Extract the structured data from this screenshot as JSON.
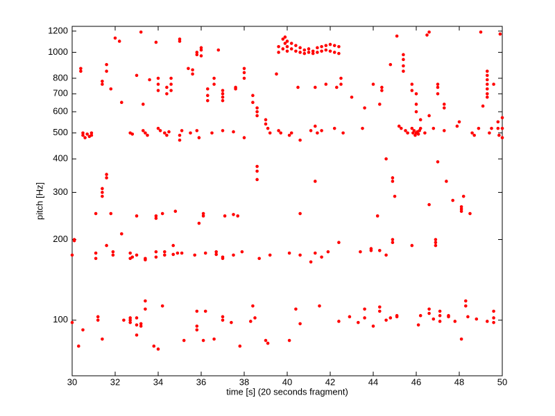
{
  "chart_data": {
    "type": "scatter",
    "xlabel": "time [s] (20 seconds fragment)",
    "ylabel": "pitch [Hz]",
    "color": "#ff0000",
    "yscale": "log",
    "xlim": [
      30,
      50
    ],
    "ylim": [
      62,
      1250
    ],
    "xticks": [
      30,
      32,
      34,
      36,
      38,
      40,
      42,
      44,
      46,
      48,
      50
    ],
    "yticks": [
      100,
      200,
      300,
      400,
      500,
      600,
      700,
      800,
      1000,
      1200
    ],
    "x": [
      30.5,
      30.5,
      30.6,
      30.7,
      30.8,
      30.9,
      30.9,
      32.7,
      32.8,
      33.3,
      33.4,
      33.5,
      34.0,
      34.1,
      34.3,
      34.4,
      34.5,
      35.0,
      35.0,
      35.1,
      35.5,
      35.8,
      35.9,
      36.5,
      37.0,
      37.5,
      38.0,
      39.1,
      39.2,
      39.6,
      39.7,
      40.1,
      40.2,
      40.6,
      41.1,
      41.3,
      41.4,
      41.6,
      42.2,
      42.6,
      43.5,
      45.2,
      45.3,
      45.5,
      45.6,
      45.8,
      45.85,
      45.9,
      45.95,
      46.0,
      46.05,
      46.1,
      46.15,
      46.2,
      46.4,
      46.8,
      47.3,
      47.9,
      48.6,
      48.7,
      48.9,
      49.4,
      49.5,
      49.8,
      49.8,
      49.85,
      50.0,
      50.0,
      50.0,
      39.6,
      39.6,
      39.8,
      39.8,
      39.9,
      39.9,
      40.0,
      40.0,
      40.0,
      40.2,
      40.2,
      40.4,
      40.4,
      40.6,
      40.6,
      40.8,
      40.8,
      41.0,
      41.0,
      41.2,
      41.2,
      41.4,
      41.4,
      41.6,
      41.6,
      41.8,
      41.8,
      42.0,
      42.0,
      42.2,
      42.2,
      42.4,
      42.4,
      30.4,
      30.4,
      31.4,
      31.4,
      31.6,
      31.6,
      31.8,
      32.0,
      32.2,
      32.3,
      33.0,
      33.2,
      33.3,
      33.6,
      33.9,
      34.0,
      34.0,
      34.0,
      34.4,
      34.4,
      34.6,
      34.6,
      34.6,
      35.0,
      35.0,
      35.4,
      35.6,
      35.6,
      35.8,
      35.8,
      36.0,
      36.0,
      36.0,
      36.3,
      36.3,
      36.3,
      36.6,
      36.6,
      36.8,
      37.0,
      37.0,
      37.0,
      37.0,
      37.6,
      37.6,
      38.0,
      38.0,
      38.0,
      38.4,
      38.4,
      38.6,
      38.6,
      38.6,
      39.0,
      39.0,
      39.5,
      40.5,
      41.3,
      41.8,
      42.3,
      42.5,
      42.5,
      43.0,
      43.6,
      44.0,
      44.3,
      44.4,
      44.4,
      44.8,
      45.1,
      45.4,
      45.4,
      45.4,
      45.4,
      45.8,
      45.8,
      46.0,
      46.0,
      46.0,
      46.2,
      46.5,
      46.6,
      46.6,
      47.0,
      47.0,
      47.0,
      47.3,
      47.3,
      48.0,
      49.0,
      49.1,
      49.3,
      49.3,
      49.3,
      49.3,
      49.3,
      49.3,
      49.3,
      49.6,
      49.9,
      31.1,
      31.4,
      31.4,
      31.4,
      31.6,
      31.6,
      31.8,
      33.0,
      33.9,
      33.9,
      34.2,
      34.8,
      35.9,
      36.1,
      36.1,
      37.1,
      37.5,
      37.7,
      38.6,
      38.6,
      38.6,
      40.6,
      41.3,
      44.2,
      44.6,
      44.9,
      44.9,
      45.0,
      46.6,
      47.0,
      47.4,
      47.7,
      48.2,
      48.1,
      48.1,
      48.1,
      48.5,
      30.0,
      30.1,
      30.1,
      31.1,
      31.1,
      31.6,
      31.9,
      31.9,
      32.3,
      32.7,
      32.7,
      32.8,
      33.0,
      33.4,
      33.4,
      33.9,
      33.9,
      34.3,
      34.3,
      34.7,
      34.7,
      34.9,
      35.1,
      35.7,
      36.2,
      36.7,
      36.7,
      37.0,
      37.0,
      37.5,
      37.9,
      38.7,
      39.2,
      40.1,
      40.6,
      41.1,
      41.3,
      41.6,
      41.9,
      42.4,
      43.4,
      43.9,
      43.9,
      44.3,
      44.6,
      44.9,
      44.9,
      45.8,
      46.9,
      46.9,
      46.9,
      30.0,
      30.3,
      30.5,
      31.2,
      31.2,
      31.4,
      32.4,
      32.7,
      32.7,
      32.7,
      33.0,
      33.0,
      33.0,
      33.2,
      33.2,
      33.4,
      33.4,
      33.8,
      34.0,
      34.2,
      35.2,
      35.8,
      35.8,
      35.8,
      36.2,
      36.1,
      36.6,
      37.4,
      37.0,
      37.0,
      37.8,
      38.5,
      38.3,
      38.4,
      39.0,
      39.1,
      40.1,
      40.4,
      40.6,
      41.5,
      42.4,
      42.9,
      43.3,
      43.6,
      43.6,
      44.0,
      44.3,
      44.3,
      44.6,
      44.8,
      45.1,
      45.1,
      46.2,
      46.1,
      46.6,
      46.6,
      46.8,
      47.1,
      47.1,
      47.1,
      47.5,
      47.5,
      47.8,
      48.1,
      48.3,
      48.3,
      48.4,
      48.8,
      49.3,
      49.6,
      49.6,
      49.6
    ],
    "values": [
      490,
      500,
      480,
      495,
      485,
      500,
      490,
      500,
      495,
      510,
      500,
      490,
      520,
      510,
      500,
      490,
      505,
      470,
      490,
      510,
      500,
      510,
      480,
      500,
      510,
      505,
      480,
      520,
      500,
      510,
      500,
      490,
      500,
      470,
      510,
      530,
      500,
      510,
      520,
      500,
      520,
      530,
      520,
      510,
      500,
      520,
      500,
      510,
      490,
      500,
      505,
      495,
      510,
      520,
      500,
      520,
      510,
      530,
      500,
      490,
      520,
      500,
      520,
      550,
      520,
      490,
      570,
      520,
      480,
      1050,
      1000,
      1120,
      1030,
      1140,
      1080,
      1100,
      1050,
      1010,
      1080,
      1030,
      1060,
      1010,
      1040,
      1000,
      1020,
      990,
      1030,
      1000,
      1010,
      990,
      1040,
      1000,
      1050,
      1010,
      1060,
      1020,
      1070,
      1010,
      1060,
      1000,
      1050,
      990,
      870,
      850,
      780,
      760,
      900,
      850,
      730,
      1130,
      1100,
      650,
      820,
      1190,
      640,
      790,
      1090,
      720,
      760,
      800,
      700,
      740,
      760,
      800,
      720,
      1120,
      1100,
      870,
      860,
      830,
      1000,
      980,
      1040,
      1020,
      970,
      730,
      690,
      660,
      800,
      760,
      1020,
      720,
      700,
      680,
      660,
      740,
      730,
      870,
      840,
      800,
      690,
      650,
      620,
      600,
      580,
      560,
      540,
      830,
      740,
      740,
      760,
      740,
      800,
      760,
      680,
      620,
      760,
      640,
      740,
      720,
      900,
      1150,
      980,
      940,
      890,
      850,
      760,
      720,
      700,
      640,
      600,
      560,
      1160,
      1190,
      580,
      740,
      760,
      700,
      640,
      620,
      550,
      1190,
      630,
      850,
      820,
      790,
      760,
      730,
      700,
      680,
      760,
      1170,
      250,
      310,
      300,
      290,
      350,
      340,
      250,
      245,
      245,
      240,
      250,
      255,
      230,
      245,
      250,
      245,
      248,
      245,
      375,
      360,
      335,
      250,
      330,
      245,
      400,
      340,
      330,
      290,
      270,
      390,
      330,
      280,
      290,
      265,
      260,
      255,
      250,
      175,
      200,
      198,
      178,
      170,
      190,
      175,
      180,
      210,
      178,
      170,
      172,
      175,
      168,
      170,
      180,
      172,
      175,
      180,
      190,
      176,
      178,
      178,
      175,
      178,
      180,
      176,
      170,
      172,
      175,
      180,
      170,
      175,
      178,
      175,
      165,
      178,
      172,
      180,
      195,
      180,
      182,
      185,
      182,
      175,
      200,
      195,
      190,
      200,
      195,
      190,
      98,
      80,
      92,
      103,
      100,
      85,
      100,
      102,
      98,
      100,
      102,
      96,
      88,
      95,
      97,
      110,
      118,
      80,
      78,
      113,
      84,
      108,
      95,
      92,
      108,
      84,
      85,
      98,
      103,
      100,
      80,
      102,
      99,
      113,
      84,
      82,
      84,
      110,
      97,
      113,
      99,
      103,
      98,
      110,
      102,
      95,
      112,
      108,
      100,
      102,
      103,
      104,
      104,
      96,
      106,
      110,
      101,
      108,
      104,
      99,
      103,
      104,
      99,
      85,
      113,
      118,
      103,
      101,
      99,
      108,
      102,
      98
    ]
  }
}
